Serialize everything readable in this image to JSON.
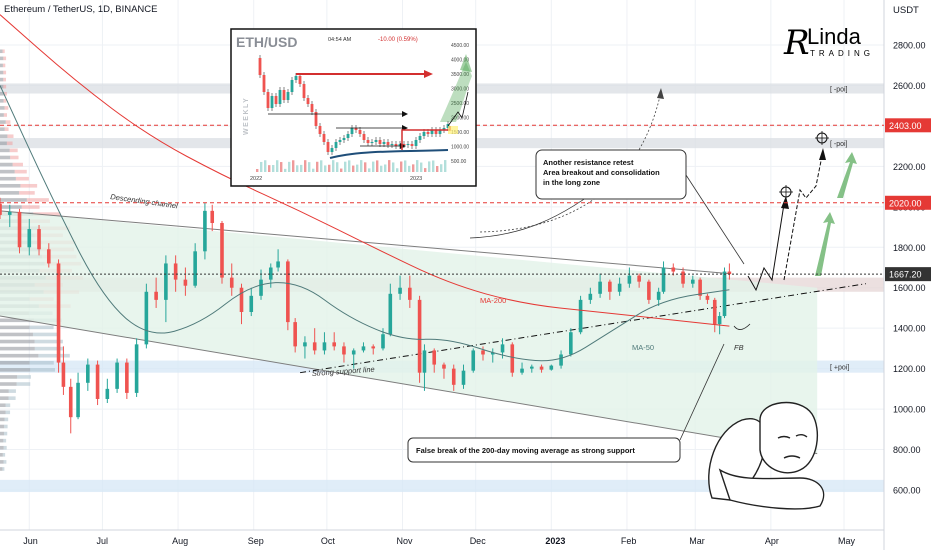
{
  "header": {
    "title": "Ethereum / TetherUS, 1D, BINANCE"
  },
  "logo": {
    "main": "Linda",
    "sub": "TRADING"
  },
  "colors": {
    "up": "#26a69a",
    "down": "#ef5350",
    "grid": "#eef1f5",
    "ma200": "#e53935",
    "ma50": "#4f7a7a",
    "channel": "#7d7d7d",
    "zone_grey": "#d9dde3",
    "zone_blue": "#d6e7f5",
    "channel_fill": "#e2f2e8",
    "level_red": "#e53935",
    "arrow_green": "#43a047"
  },
  "chart_data": {
    "type": "candlestick",
    "y_axis": {
      "unit": "USDT",
      "ticks": [
        600,
        800,
        1000,
        1200,
        1400,
        1600,
        1800,
        2000,
        2200,
        2400,
        2600,
        2800
      ],
      "range": [
        500,
        3000
      ]
    },
    "x_axis": {
      "ticks": [
        "Jun",
        "Jul",
        "Aug",
        "Sep",
        "Oct",
        "Nov",
        "Dec",
        "2023",
        "Feb",
        "Mar",
        "Apr",
        "May"
      ],
      "range": [
        "2022-05-20",
        "2023-05-10"
      ]
    },
    "price_labels": [
      {
        "value": 2403.0,
        "label": "2403.00",
        "color": "#e53935"
      },
      {
        "value": 2020.0,
        "label": "2020.00",
        "color": "#e53935"
      },
      {
        "value": 1667.2,
        "label": "1667.20",
        "color": "#333333"
      }
    ],
    "zones": [
      {
        "name": "poi-upper",
        "from": 2560,
        "to": 2610,
        "label": "[ -poi]",
        "color": "#d9dde3"
      },
      {
        "name": "poi-middle",
        "from": 2290,
        "to": 2340,
        "label": "[ -poi]",
        "color": "#d9dde3"
      },
      {
        "name": "resistance",
        "from": 1580,
        "to": 1650,
        "label": "",
        "color": "#e6d6d6"
      },
      {
        "name": "poi-lower",
        "from": 1180,
        "to": 1240,
        "label": "[ +poi]",
        "color": "#d6e7f5"
      },
      {
        "name": "support-low",
        "from": 590,
        "to": 650,
        "label": "",
        "color": "#d6e7f5"
      }
    ],
    "annotations": [
      {
        "name": "descending-channel",
        "text": "Descending channel"
      },
      {
        "name": "ma200",
        "text": "MA-200"
      },
      {
        "name": "ma50",
        "text": "MA-50"
      },
      {
        "name": "strong-support",
        "text": "Strong support line"
      },
      {
        "name": "fb",
        "text": "FB"
      }
    ],
    "callouts": [
      {
        "name": "resistance-retest",
        "lines": [
          "Another resistance retest",
          "Area breakout and consolidation",
          "in the long zone"
        ]
      },
      {
        "name": "false-break",
        "lines": [
          "False break of the 200-day moving average as strong support"
        ]
      }
    ],
    "candles": [
      [
        "2022-05-20",
        2015,
        2045,
        1940,
        1960
      ],
      [
        "2022-05-24",
        1960,
        2010,
        1900,
        1975
      ],
      [
        "2022-05-28",
        1975,
        1990,
        1770,
        1800
      ],
      [
        "2022-06-01",
        1800,
        1940,
        1760,
        1890
      ],
      [
        "2022-06-05",
        1890,
        1910,
        1760,
        1790
      ],
      [
        "2022-06-09",
        1790,
        1820,
        1700,
        1720
      ],
      [
        "2022-06-13",
        1720,
        1740,
        1180,
        1230
      ],
      [
        "2022-06-15",
        1230,
        1310,
        1070,
        1110
      ],
      [
        "2022-06-18",
        1110,
        1150,
        880,
        960
      ],
      [
        "2022-06-21",
        960,
        1180,
        950,
        1130
      ],
      [
        "2022-06-25",
        1130,
        1250,
        1090,
        1220
      ],
      [
        "2022-06-29",
        1220,
        1240,
        1020,
        1050
      ],
      [
        "2022-07-03",
        1050,
        1150,
        1030,
        1100
      ],
      [
        "2022-07-07",
        1100,
        1250,
        1080,
        1230
      ],
      [
        "2022-07-11",
        1230,
        1250,
        1050,
        1080
      ],
      [
        "2022-07-15",
        1080,
        1350,
        1060,
        1320
      ],
      [
        "2022-07-19",
        1320,
        1620,
        1300,
        1580
      ],
      [
        "2022-07-23",
        1580,
        1650,
        1500,
        1540
      ],
      [
        "2022-07-27",
        1540,
        1760,
        1430,
        1720
      ],
      [
        "2022-07-31",
        1720,
        1760,
        1580,
        1640
      ],
      [
        "2022-08-04",
        1640,
        1700,
        1560,
        1610
      ],
      [
        "2022-08-08",
        1610,
        1820,
        1600,
        1780
      ],
      [
        "2022-08-12",
        1780,
        2020,
        1740,
        1980
      ],
      [
        "2022-08-15",
        1980,
        2010,
        1880,
        1920
      ],
      [
        "2022-08-19",
        1920,
        1930,
        1620,
        1650
      ],
      [
        "2022-08-23",
        1650,
        1720,
        1560,
        1600
      ],
      [
        "2022-08-27",
        1600,
        1620,
        1420,
        1480
      ],
      [
        "2022-08-31",
        1480,
        1600,
        1460,
        1560
      ],
      [
        "2022-09-04",
        1560,
        1690,
        1540,
        1640
      ],
      [
        "2022-09-08",
        1640,
        1720,
        1600,
        1700
      ],
      [
        "2022-09-11",
        1700,
        1790,
        1680,
        1730
      ],
      [
        "2022-09-15",
        1730,
        1740,
        1390,
        1430
      ],
      [
        "2022-09-18",
        1430,
        1450,
        1280,
        1310
      ],
      [
        "2022-09-22",
        1310,
        1360,
        1250,
        1330
      ],
      [
        "2022-09-26",
        1330,
        1400,
        1270,
        1290
      ],
      [
        "2022-09-30",
        1290,
        1380,
        1270,
        1330
      ],
      [
        "2022-10-04",
        1330,
        1380,
        1290,
        1310
      ],
      [
        "2022-10-08",
        1310,
        1330,
        1230,
        1270
      ],
      [
        "2022-10-12",
        1270,
        1300,
        1200,
        1290
      ],
      [
        "2022-10-16",
        1290,
        1330,
        1280,
        1310
      ],
      [
        "2022-10-20",
        1310,
        1320,
        1270,
        1300
      ],
      [
        "2022-10-24",
        1300,
        1400,
        1290,
        1370
      ],
      [
        "2022-10-27",
        1370,
        1620,
        1360,
        1570
      ],
      [
        "2022-10-31",
        1570,
        1660,
        1540,
        1600
      ],
      [
        "2022-11-04",
        1600,
        1660,
        1500,
        1540
      ],
      [
        "2022-11-08",
        1540,
        1560,
        1130,
        1180
      ],
      [
        "2022-11-10",
        1180,
        1320,
        1090,
        1290
      ],
      [
        "2022-11-14",
        1290,
        1300,
        1180,
        1220
      ],
      [
        "2022-11-18",
        1220,
        1230,
        1150,
        1200
      ],
      [
        "2022-11-22",
        1200,
        1220,
        1090,
        1120
      ],
      [
        "2022-11-26",
        1120,
        1220,
        1100,
        1190
      ],
      [
        "2022-11-30",
        1190,
        1300,
        1180,
        1290
      ],
      [
        "2022-12-04",
        1290,
        1310,
        1240,
        1270
      ],
      [
        "2022-12-08",
        1270,
        1300,
        1230,
        1280
      ],
      [
        "2022-12-12",
        1280,
        1350,
        1250,
        1320
      ],
      [
        "2022-12-16",
        1320,
        1330,
        1160,
        1180
      ],
      [
        "2022-12-20",
        1180,
        1230,
        1170,
        1200
      ],
      [
        "2022-12-24",
        1200,
        1220,
        1180,
        1210
      ],
      [
        "2022-12-28",
        1210,
        1220,
        1180,
        1195
      ],
      [
        "2023-01-01",
        1195,
        1220,
        1190,
        1215
      ],
      [
        "2023-01-05",
        1215,
        1290,
        1200,
        1270
      ],
      [
        "2023-01-09",
        1270,
        1400,
        1260,
        1380
      ],
      [
        "2023-01-13",
        1380,
        1560,
        1370,
        1540
      ],
      [
        "2023-01-17",
        1540,
        1600,
        1520,
        1570
      ],
      [
        "2023-01-21",
        1570,
        1670,
        1550,
        1630
      ],
      [
        "2023-01-25",
        1630,
        1640,
        1540,
        1580
      ],
      [
        "2023-01-29",
        1580,
        1650,
        1560,
        1620
      ],
      [
        "2023-02-02",
        1620,
        1700,
        1600,
        1660
      ],
      [
        "2023-02-06",
        1660,
        1670,
        1600,
        1630
      ],
      [
        "2023-02-10",
        1630,
        1640,
        1520,
        1540
      ],
      [
        "2023-02-14",
        1540,
        1600,
        1510,
        1580
      ],
      [
        "2023-02-16",
        1580,
        1730,
        1570,
        1700
      ],
      [
        "2023-02-20",
        1700,
        1720,
        1660,
        1680
      ],
      [
        "2023-02-24",
        1680,
        1700,
        1600,
        1620
      ],
      [
        "2023-02-28",
        1620,
        1660,
        1600,
        1640
      ],
      [
        "2023-03-03",
        1640,
        1650,
        1540,
        1560
      ],
      [
        "2023-03-06",
        1560,
        1570,
        1520,
        1540
      ],
      [
        "2023-03-09",
        1540,
        1550,
        1380,
        1420
      ],
      [
        "2023-03-11",
        1420,
        1480,
        1370,
        1460
      ],
      [
        "2023-03-13",
        1460,
        1700,
        1450,
        1680
      ],
      [
        "2023-03-15",
        1680,
        1720,
        1640,
        1667.2
      ]
    ],
    "series": [
      {
        "name": "MA-200",
        "points": [
          [
            "2022-05-20",
            2950
          ],
          [
            "2022-06-20",
            2620
          ],
          [
            "2022-07-20",
            2350
          ],
          [
            "2022-08-20",
            2150
          ],
          [
            "2022-09-20",
            1980
          ],
          [
            "2022-10-20",
            1800
          ],
          [
            "2022-11-20",
            1620
          ],
          [
            "2022-12-20",
            1520
          ],
          [
            "2023-01-20",
            1480
          ],
          [
            "2023-02-20",
            1440
          ],
          [
            "2023-03-15",
            1410
          ]
        ]
      },
      {
        "name": "MA-50",
        "points": [
          [
            "2022-05-20",
            2600
          ],
          [
            "2022-06-10",
            2050
          ],
          [
            "2022-07-01",
            1550
          ],
          [
            "2022-07-20",
            1350
          ],
          [
            "2022-08-10",
            1420
          ],
          [
            "2022-08-31",
            1620
          ],
          [
            "2022-09-20",
            1630
          ],
          [
            "2022-10-10",
            1450
          ],
          [
            "2022-11-01",
            1340
          ],
          [
            "2022-11-20",
            1350
          ],
          [
            "2022-12-15",
            1250
          ],
          [
            "2023-01-05",
            1230
          ],
          [
            "2023-01-25",
            1380
          ],
          [
            "2023-02-15",
            1540
          ],
          [
            "2023-03-15",
            1590
          ]
        ]
      }
    ],
    "lines": [
      {
        "name": "channel-upper",
        "from": [
          "2022-05-20",
          1980
        ],
        "to": [
          "2023-03-15",
          1670
        ],
        "style": "solid"
      },
      {
        "name": "channel-lower",
        "from": [
          "2022-05-20",
          1460
        ],
        "to": [
          "2023-04-20",
          780
        ],
        "style": "solid"
      },
      {
        "name": "support-line",
        "from": [
          "2022-09-20",
          1180
        ],
        "to": [
          "2023-05-10",
          1620
        ],
        "style": "dashdot"
      }
    ],
    "inset": {
      "title": "ETH/USD",
      "time": "04:54 AM",
      "change": "-10.00 (0.59%)",
      "label": "WEEKLY",
      "x_ticks": [
        "2022",
        "2023"
      ],
      "y_ticks": [
        "4500.00",
        "4000.00",
        "3500.00",
        "3000.00",
        "2500.00",
        "2000.00",
        "1500.00",
        "1000.00",
        "500.00"
      ]
    }
  }
}
